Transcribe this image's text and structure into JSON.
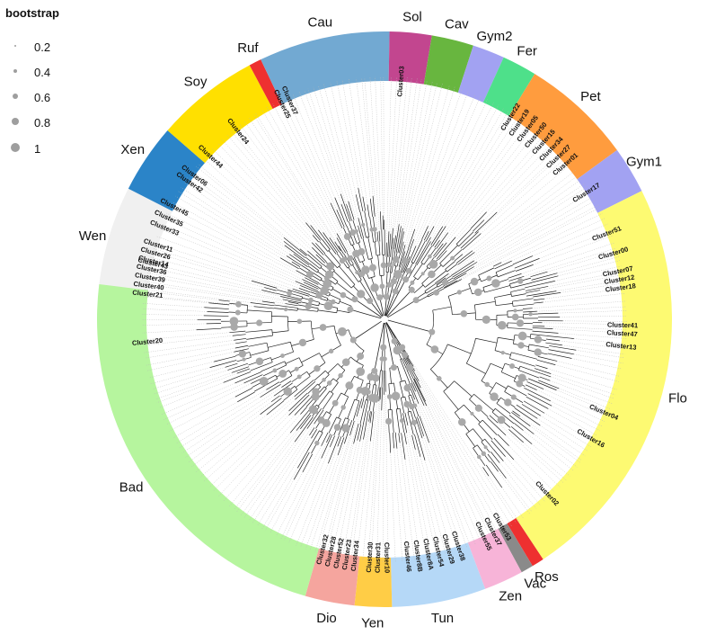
{
  "legend": {
    "title": "bootstrap",
    "items": [
      {
        "label": "0.2",
        "value": 0.2
      },
      {
        "label": "0.4",
        "value": 0.4
      },
      {
        "label": "0.6",
        "value": 0.6
      },
      {
        "label": "0.8",
        "value": 0.8
      },
      {
        "label": "1",
        "value": 1.0
      }
    ]
  },
  "clades": [
    {
      "name": "Wen",
      "color": "#f0f0f0",
      "start": -175,
      "end": -153
    },
    {
      "name": "Xen",
      "color": "#2b84c8",
      "start": -153,
      "end": -139
    },
    {
      "name": "Soy",
      "color": "#ffe000",
      "start": -139,
      "end": -118
    },
    {
      "name": "Ruf",
      "color": "#ee3030",
      "start": -118,
      "end": -115.5
    },
    {
      "name": "Cau",
      "color": "#72a9d2",
      "start": -115.5,
      "end": -89
    },
    {
      "name": "Sol",
      "color": "#c2468f",
      "start": -89,
      "end": -80.5
    },
    {
      "name": "Cav",
      "color": "#68b63f",
      "start": -80.5,
      "end": -72
    },
    {
      "name": "Gym2",
      "color": "#a2a2f2",
      "start": -72,
      "end": -65.5
    },
    {
      "name": "Fer",
      "color": "#4ee08a",
      "start": -65.5,
      "end": -58.5
    },
    {
      "name": "Pet",
      "color": "#ff9c3e",
      "start": -58.5,
      "end": -36
    },
    {
      "name": "Gym1",
      "color": "#a2a2f2",
      "start": -36,
      "end": -26.5
    },
    {
      "name": "Flo",
      "color": "#fdfa72",
      "start": -26.5,
      "end": 56.5
    },
    {
      "name": "Ros",
      "color": "#ee3030",
      "start": 56.5,
      "end": 59
    },
    {
      "name": "Vac",
      "color": "#8a8a8a",
      "start": 59,
      "end": 61.5
    },
    {
      "name": "Zen",
      "color": "#f7b4d8",
      "start": 61.5,
      "end": 69.5
    },
    {
      "name": "Tun",
      "color": "#b5d8f7",
      "start": 69.5,
      "end": 88.5
    },
    {
      "name": "Yen",
      "color": "#ffcd46",
      "start": 88.5,
      "end": 96
    },
    {
      "name": "Dio",
      "color": "#f5a59e",
      "start": 96,
      "end": 106
    },
    {
      "name": "Bad",
      "color": "#b6f59e",
      "start": 106,
      "end": 187
    }
  ],
  "clusters": [
    {
      "label": "Cluster21",
      "angle": -174
    },
    {
      "label": "Cluster40",
      "angle": -172
    },
    {
      "label": "Cluster39",
      "angle": -170
    },
    {
      "label": "Cluster36",
      "angle": -168
    },
    {
      "label": "Cluster14",
      "angle": -166
    },
    {
      "label": "Cluster26",
      "angle": -164
    },
    {
      "label": "Cluster11",
      "angle": -162
    },
    {
      "label": "Cluster33",
      "angle": -157.5
    },
    {
      "label": "Cluster35",
      "angle": -155
    },
    {
      "label": "Cluster45",
      "angle": -152
    },
    {
      "label": "Cluster42",
      "angle": -145
    },
    {
      "label": "Cluster06",
      "angle": -143
    },
    {
      "label": "Cluster44",
      "angle": -137
    },
    {
      "label": "Cluster24",
      "angle": -128
    },
    {
      "label": "Cluster25",
      "angle": -115.5
    },
    {
      "label": "Cluster37",
      "angle": -113.5
    },
    {
      "label": "Cluster03",
      "angle": -86
    },
    {
      "label": "Cluster22",
      "angle": -58
    },
    {
      "label": "Cluster19",
      "angle": -55.5
    },
    {
      "label": "Cluster05",
      "angle": -53
    },
    {
      "label": "Cluster50",
      "angle": -50.5
    },
    {
      "label": "Cluster15",
      "angle": -48
    },
    {
      "label": "Cluster34",
      "angle": -45.5
    },
    {
      "label": "Cluster27",
      "angle": -43
    },
    {
      "label": "Cluster01",
      "angle": -40.5
    },
    {
      "label": "Cluster17",
      "angle": -32
    },
    {
      "label": "Cluster51",
      "angle": -21
    },
    {
      "label": "Cluster00",
      "angle": -16
    },
    {
      "label": "Cluster07",
      "angle": -11.5
    },
    {
      "label": "Cluster12",
      "angle": -9.5
    },
    {
      "label": "Cluster18",
      "angle": -7.5
    },
    {
      "label": "Cluster41",
      "angle": 1.5
    },
    {
      "label": "Cluster47",
      "angle": 3.5
    },
    {
      "label": "Cluster13",
      "angle": 6.5
    },
    {
      "label": "Cluster04",
      "angle": 23
    },
    {
      "label": "Cluster16",
      "angle": 30
    },
    {
      "label": "Cluster02",
      "angle": 47
    },
    {
      "label": "Cluster53",
      "angle": 60.5
    },
    {
      "label": "Cluster37",
      "angle": 63
    },
    {
      "label": "Cluster55",
      "angle": 65.5
    },
    {
      "label": "Cluster38",
      "angle": 72
    },
    {
      "label": "Cluster29",
      "angle": 74.5
    },
    {
      "label": "Cluster54",
      "angle": 77
    },
    {
      "label": "Cluster8A",
      "angle": 79.5
    },
    {
      "label": "Cluster8B",
      "angle": 82
    },
    {
      "label": "Cluster46",
      "angle": 84.5
    },
    {
      "label": "Cluster10",
      "angle": 89.5
    },
    {
      "label": "Cluster31",
      "angle": 91.5
    },
    {
      "label": "Cluster30",
      "angle": 93.5
    },
    {
      "label": "Cluster34",
      "angle": 97
    },
    {
      "label": "Cluster23",
      "angle": 99
    },
    {
      "label": "Cluster52",
      "angle": 101
    },
    {
      "label": "Cluster28",
      "angle": 103
    },
    {
      "label": "Cluster32",
      "angle": 105
    },
    {
      "label": "Cluster20",
      "angle": 174.5
    },
    {
      "label": "Cluster43",
      "angle": -166.5
    }
  ]
}
